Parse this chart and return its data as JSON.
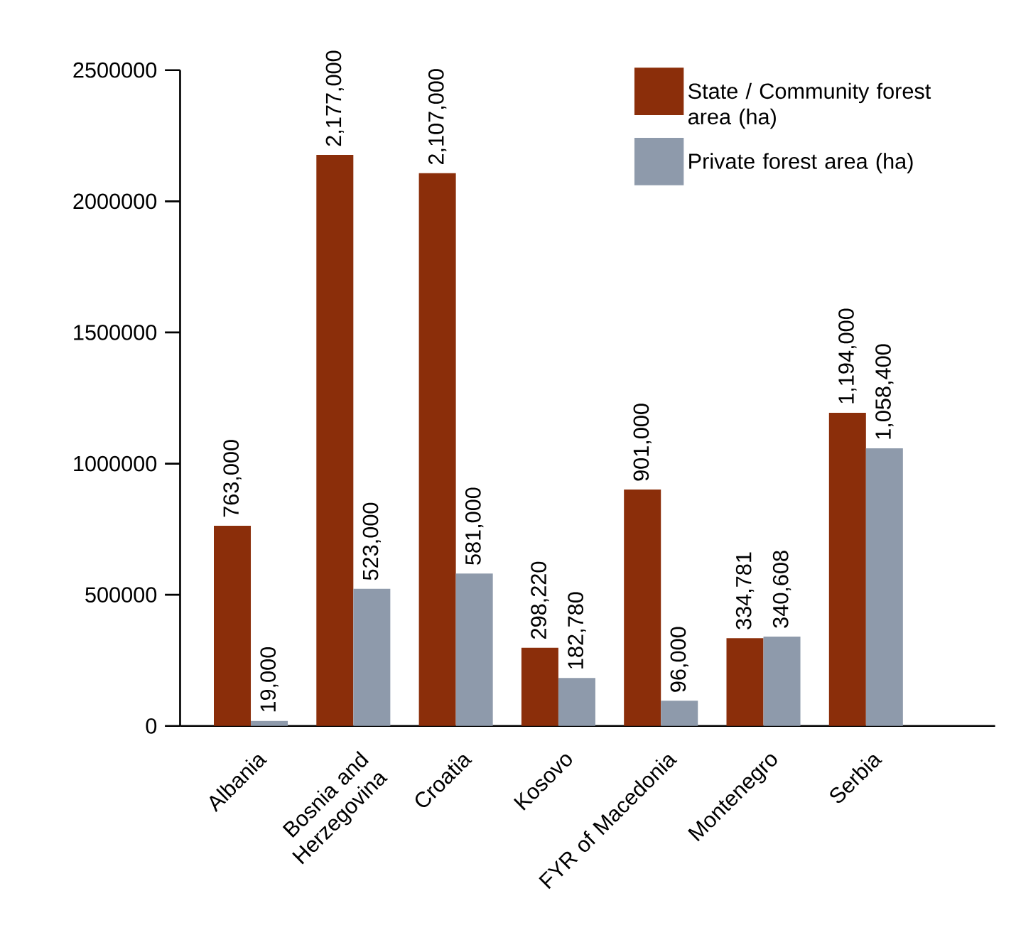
{
  "chart_data": {
    "type": "bar",
    "categories": [
      "Albania",
      "Bosnia and Herzegovina",
      "Croatia",
      "Kosovo",
      "FYR of Macedonia",
      "Montenegro",
      "Serbia"
    ],
    "series": [
      {
        "name": "State / Community forest area (ha)",
        "color": "#8b2e0a",
        "values": [
          763000,
          2177000,
          2107000,
          298220,
          901000,
          334781,
          1194000
        ],
        "value_labels": [
          "763,000",
          "2,177,000",
          "2,107,000",
          "298,220",
          "901,000",
          "334,781",
          "1,194,000"
        ]
      },
      {
        "name": "Private forest area (ha)",
        "color": "#8e9aab",
        "values": [
          19000,
          523000,
          581000,
          182780,
          96000,
          340608,
          1058400
        ],
        "value_labels": [
          "19,000",
          "523,000",
          "581,000",
          "182,780",
          "96,000",
          "340,608",
          "1,058,400"
        ]
      }
    ],
    "ylim": [
      0,
      2500000
    ],
    "yticks": [
      0,
      500000,
      1000000,
      1500000,
      2000000,
      2500000
    ],
    "grid": false,
    "legend": "top right"
  }
}
